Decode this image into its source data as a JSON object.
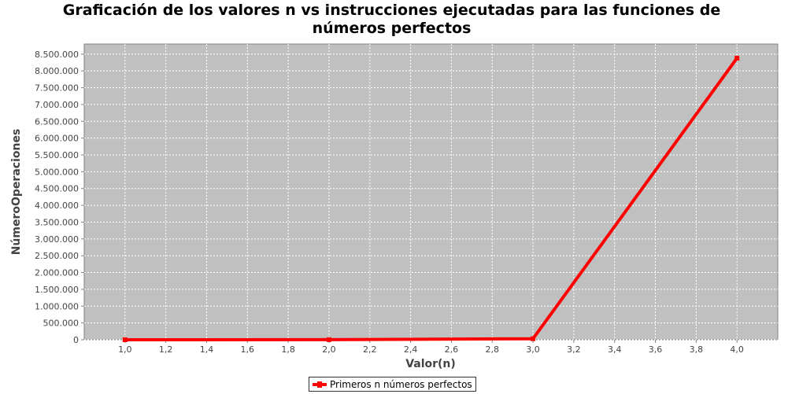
{
  "chart_data": {
    "type": "line",
    "title_lines": [
      "Graficación de los valores n vs instrucciones ejecutadas para las funciones de",
      "números perfectos"
    ],
    "xlabel": "Valor(n)",
    "ylabel": "NúmeroOperaciones",
    "xlim": [
      0.8,
      4.2
    ],
    "ylim": [
      0,
      8800000
    ],
    "x_ticks": [
      "1,0",
      "1,2",
      "1,4",
      "1,6",
      "1,8",
      "2,0",
      "2,2",
      "2,4",
      "2,6",
      "2,8",
      "3,0",
      "3,2",
      "3,4",
      "3,6",
      "3,8",
      "4,0"
    ],
    "x_tick_values": [
      1.0,
      1.2,
      1.4,
      1.6,
      1.8,
      2.0,
      2.2,
      2.4,
      2.6,
      2.8,
      3.0,
      3.2,
      3.4,
      3.6,
      3.8,
      4.0
    ],
    "y_ticks": [
      "0",
      "500.000",
      "1.000.000",
      "1.500.000",
      "2.000.000",
      "2.500.000",
      "3.000.000",
      "3.500.000",
      "4.000.000",
      "4.500.000",
      "5.000.000",
      "5.500.000",
      "6.000.000",
      "6.500.000",
      "7.000.000",
      "7.500.000",
      "8.000.000",
      "8.500.000"
    ],
    "y_tick_values": [
      0,
      500000,
      1000000,
      1500000,
      2000000,
      2500000,
      3000000,
      3500000,
      4000000,
      4500000,
      5000000,
      5500000,
      6000000,
      6500000,
      7000000,
      7500000,
      8000000,
      8500000
    ],
    "grid": true,
    "legend_position": "bottom",
    "series": [
      {
        "name": "Primeros n números perfectos",
        "color": "#ff0000",
        "x": [
          1,
          2,
          3,
          4
        ],
        "y": [
          0,
          2000,
          30000,
          8380000
        ]
      }
    ]
  }
}
